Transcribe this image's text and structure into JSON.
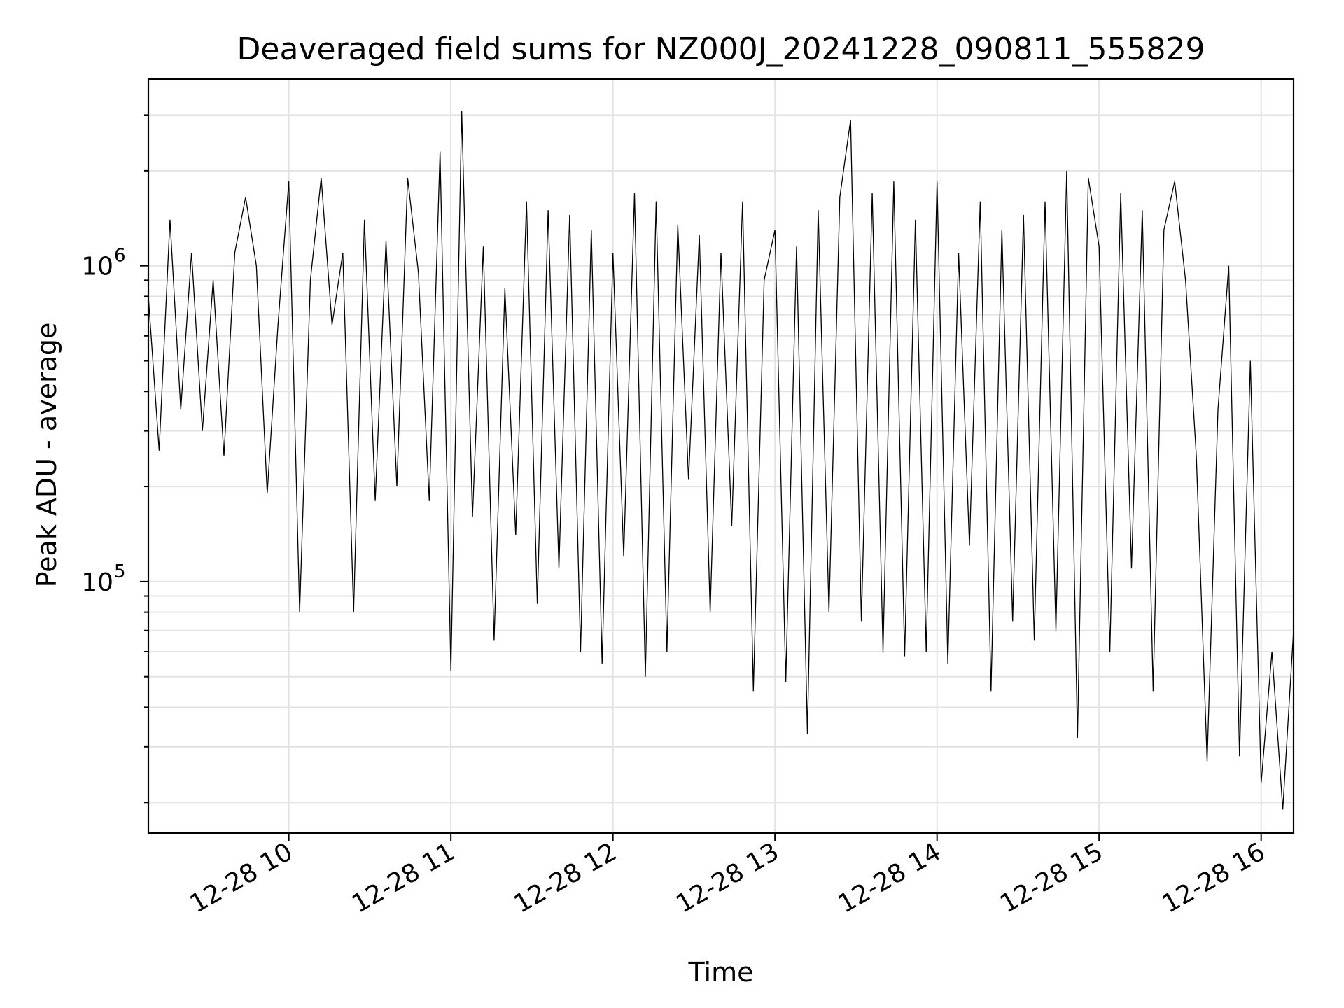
{
  "chart_data": {
    "type": "line",
    "title": "Deaveraged field sums for NZ000J_20241228_090811_555829",
    "xlabel": "Time",
    "ylabel": "Peak ADU - average",
    "yscale": "log",
    "xlim": [
      "2024-12-28 09:08",
      "2024-12-28 16:12"
    ],
    "ylim": [
      16000,
      3900000
    ],
    "grid": true,
    "line_color": "#000000",
    "x_ticks": [
      "12-28 10",
      "12-28 11",
      "12-28 12",
      "12-28 13",
      "12-28 14",
      "12-28 15",
      "12-28 16"
    ],
    "y_ticks": [
      {
        "base": "10",
        "exp": "5",
        "value": 100000
      },
      {
        "base": "10",
        "exp": "6",
        "value": 1000000
      }
    ],
    "series": [
      {
        "x": [
          "09:08",
          "09:12",
          "09:16",
          "09:20",
          "09:24",
          "09:28",
          "09:32",
          "09:36",
          "09:40",
          "09:44",
          "09:48",
          "09:52",
          "09:56",
          "10:00",
          "10:04",
          "10:08",
          "10:12",
          "10:16",
          "10:20",
          "10:24",
          "10:28",
          "10:32",
          "10:36",
          "10:40",
          "10:44",
          "10:48",
          "10:52",
          "10:56",
          "11:00",
          "11:04",
          "11:08",
          "11:12",
          "11:16",
          "11:20",
          "11:24",
          "11:28",
          "11:32",
          "11:36",
          "11:40",
          "11:44",
          "11:48",
          "11:52",
          "11:56",
          "12:00",
          "12:04",
          "12:08",
          "12:12",
          "12:16",
          "12:20",
          "12:24",
          "12:28",
          "12:32",
          "12:36",
          "12:40",
          "12:44",
          "12:48",
          "12:52",
          "12:56",
          "13:00",
          "13:04",
          "13:08",
          "13:12",
          "13:16",
          "13:20",
          "13:24",
          "13:28",
          "13:32",
          "13:36",
          "13:40",
          "13:44",
          "13:48",
          "13:52",
          "13:56",
          "14:00",
          "14:04",
          "14:08",
          "14:12",
          "14:16",
          "14:20",
          "14:24",
          "14:28",
          "14:32",
          "14:36",
          "14:40",
          "14:44",
          "14:48",
          "14:52",
          "14:56",
          "15:00",
          "15:04",
          "15:08",
          "15:12",
          "15:16",
          "15:20",
          "15:24",
          "15:28",
          "15:32",
          "15:36",
          "15:40",
          "15:44",
          "15:48",
          "15:52",
          "15:56",
          "16:00",
          "16:04",
          "16:08",
          "16:12"
        ],
        "y": [
          800000,
          260000,
          1400000,
          350000,
          1100000,
          300000,
          900000,
          250000,
          1100000,
          1650000,
          1000000,
          190000,
          650000,
          1850000,
          80000,
          900000,
          1900000,
          650000,
          1100000,
          80000,
          1400000,
          180000,
          1200000,
          200000,
          1900000,
          950000,
          180000,
          2300000,
          52000,
          3100000,
          160000,
          1150000,
          65000,
          850000,
          140000,
          1600000,
          85000,
          1500000,
          110000,
          1450000,
          60000,
          1300000,
          55000,
          1100000,
          120000,
          1700000,
          50000,
          1600000,
          60000,
          1350000,
          210000,
          1250000,
          80000,
          1100000,
          150000,
          1600000,
          45000,
          900000,
          1300000,
          48000,
          1150000,
          33000,
          1500000,
          80000,
          1650000,
          2900000,
          75000,
          1700000,
          60000,
          1850000,
          58000,
          1400000,
          60000,
          1850000,
          55000,
          1100000,
          130000,
          1600000,
          45000,
          1300000,
          75000,
          1450000,
          65000,
          1600000,
          70000,
          2000000,
          32000,
          1900000,
          1150000,
          60000,
          1700000,
          110000,
          1500000,
          45000,
          1300000,
          1850000,
          900000,
          250000,
          27000,
          350000,
          1000000,
          28000,
          500000,
          23000,
          60000,
          19000,
          70000
        ],
        "name": ""
      }
    ]
  }
}
